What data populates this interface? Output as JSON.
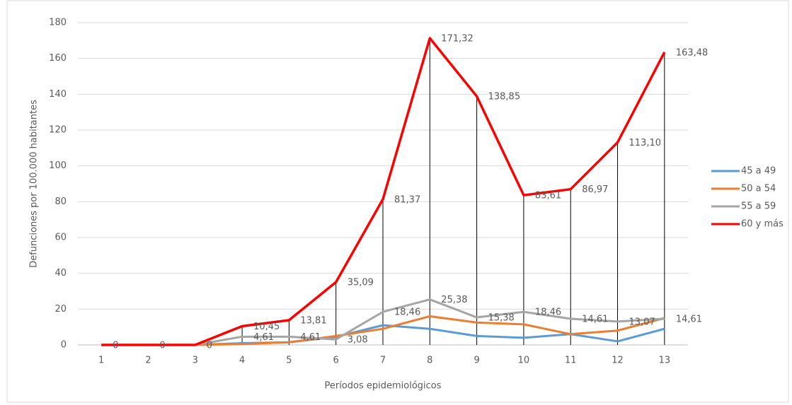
{
  "chart_data": {
    "type": "line",
    "x_label": "Períodos epidemiológicos",
    "y_label": "Defunciones por 100.000 habitantes",
    "categories": [
      "1",
      "2",
      "3",
      "4",
      "5",
      "6",
      "7",
      "8",
      "9",
      "10",
      "11",
      "12",
      "13"
    ],
    "series": [
      {
        "name": "45 a 49",
        "color": "#5b9bd5",
        "values": [
          0,
          0,
          0,
          1,
          1.5,
          4.5,
          11,
          9,
          5,
          4,
          6,
          2,
          9
        ]
      },
      {
        "name": "50 a 54",
        "color": "#ed7d31",
        "values": [
          0,
          0,
          0,
          0.5,
          1.5,
          5,
          9,
          16,
          12.5,
          11.5,
          6,
          8,
          15
        ]
      },
      {
        "name": "55 a 59",
        "color": "#a5a5a5",
        "values": [
          0,
          0,
          0,
          4.61,
          4.61,
          3.08,
          18.46,
          25.38,
          15.38,
          18.46,
          14.61,
          13.07,
          14.61
        ],
        "value_labels": [
          null,
          null,
          null,
          "4,61",
          "4,61",
          "3,08",
          "18,46",
          "25,38",
          "15,38",
          "18,46",
          "14,61",
          "13,07",
          "14,61"
        ]
      },
      {
        "name": "60 y más",
        "color": "#ff0000",
        "values": [
          0,
          0,
          0,
          10.45,
          13.81,
          35.09,
          81.37,
          171.32,
          138.85,
          83.61,
          86.97,
          113.1,
          163.48
        ],
        "value_labels": [
          "0",
          "0",
          "0",
          "10,45",
          "13,81",
          "35,09",
          "81,37",
          "171,32",
          "138,85",
          "83,61",
          "86,97",
          "113,10",
          "163,48"
        ]
      }
    ],
    "ylim": [
      0,
      180
    ],
    "yticks": [
      0,
      20,
      40,
      60,
      80,
      100,
      120,
      140,
      160,
      180
    ],
    "grid": true,
    "drop_lines": true,
    "legend": "right"
  }
}
